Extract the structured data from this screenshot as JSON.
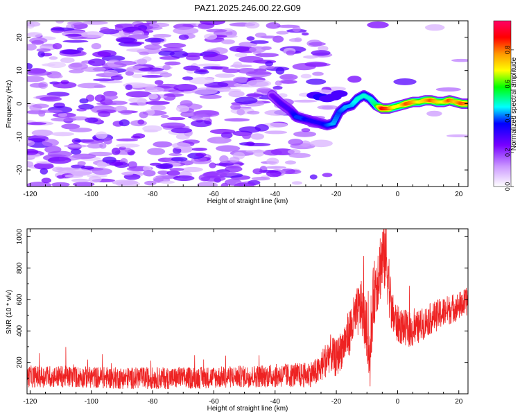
{
  "figure": {
    "title": "PAZ1.2025.246.00.22.G09"
  },
  "chart_data": [
    {
      "type": "heatmap",
      "title": "PAZ1.2025.246.00.22.G09",
      "xlabel": "Height of straight line (km)",
      "ylabel": "Frequency (Hz)",
      "xlim": [
        -121,
        23
      ],
      "ylim": [
        -25,
        25
      ],
      "x_ticks": [
        -120,
        -100,
        -80,
        -60,
        -40,
        -20,
        0,
        20
      ],
      "y_ticks": [
        -20,
        -10,
        0,
        10,
        20
      ],
      "grid": false,
      "colorbar": {
        "label": "Normalized spectral amplitude",
        "range": [
          0,
          0.97
        ],
        "ticks": [
          0.0,
          0.2,
          0.4,
          0.6,
          0.8
        ],
        "colors": [
          "#ffffff",
          "#cc99ff",
          "#7700ff",
          "#0000ff",
          "#00ffff",
          "#00ff00",
          "#ffff00",
          "#ff9900",
          "#ff0000",
          "#ff0066"
        ]
      },
      "signal_track": {
        "x": [
          -41,
          -38,
          -35,
          -33,
          -31,
          -29,
          -27,
          -25,
          -23,
          -21,
          -19,
          -17,
          -15,
          -13,
          -11,
          -9,
          -7,
          -5,
          -3,
          -1,
          1,
          3,
          5,
          7,
          9,
          11,
          13,
          15,
          17,
          19,
          21,
          23
        ],
        "frequency": [
          2.5,
          0,
          -2,
          -4,
          -4.5,
          -5,
          -5.5,
          -6,
          -6.5,
          -6,
          -2.5,
          -1,
          -0.5,
          1.5,
          2.5,
          1.5,
          -0.5,
          -1.5,
          -1.5,
          -1,
          -0.5,
          0,
          0.5,
          0.5,
          1,
          1,
          0.5,
          0.5,
          1,
          0.5,
          0,
          0
        ],
        "amplitude": [
          0.25,
          0.3,
          0.3,
          0.4,
          0.4,
          0.35,
          0.35,
          0.35,
          0.4,
          0.45,
          0.4,
          0.45,
          0.45,
          0.5,
          0.5,
          0.5,
          0.55,
          0.9,
          0.85,
          0.7,
          0.7,
          0.85,
          0.8,
          0.7,
          0.75,
          0.85,
          0.75,
          0.7,
          0.85,
          0.75,
          0.85,
          0.8
        ]
      },
      "secondary_track": {
        "x": [
          -27,
          -25,
          -23,
          -21,
          -19
        ],
        "frequency": [
          2.5,
          2,
          1.5,
          2,
          3
        ],
        "amplitude": [
          0.3,
          0.35,
          0.3,
          0.3,
          0.3
        ]
      },
      "background_noise_amplitude": 0.15
    },
    {
      "type": "line",
      "xlabel": "Height of straight line (km)",
      "ylabel": "SNR (10 * v/v)",
      "xlim": [
        -121,
        23
      ],
      "ylim": [
        0,
        1050
      ],
      "x_ticks": [
        -120,
        -100,
        -80,
        -60,
        -40,
        -20,
        0,
        20
      ],
      "y_ticks": [
        200,
        400,
        600,
        800,
        1000
      ],
      "grid": false,
      "series": [
        {
          "color": "#ee2222",
          "x": [
            -121,
            -110,
            -100,
            -90,
            -80,
            -70,
            -60,
            -50,
            -40,
            -30,
            -26,
            -24,
            -22,
            -20,
            -18,
            -16,
            -14,
            -12,
            -10,
            -9,
            -8,
            -7,
            -6,
            -5,
            -4,
            -3,
            -2,
            0,
            5,
            10,
            15,
            20,
            23
          ],
          "values": [
            110,
            110,
            105,
            100,
            100,
            100,
            105,
            110,
            115,
            120,
            140,
            200,
            260,
            220,
            300,
            380,
            480,
            560,
            400,
            150,
            600,
            700,
            800,
            850,
            900,
            750,
            520,
            440,
            400,
            470,
            520,
            560,
            590
          ],
          "noise": [
            70,
            70,
            70,
            70,
            70,
            70,
            70,
            70,
            75,
            80,
            90,
            110,
            120,
            120,
            130,
            150,
            160,
            170,
            180,
            120,
            200,
            220,
            230,
            240,
            250,
            220,
            140,
            120,
            110,
            100,
            100,
            90,
            90
          ]
        }
      ]
    }
  ]
}
